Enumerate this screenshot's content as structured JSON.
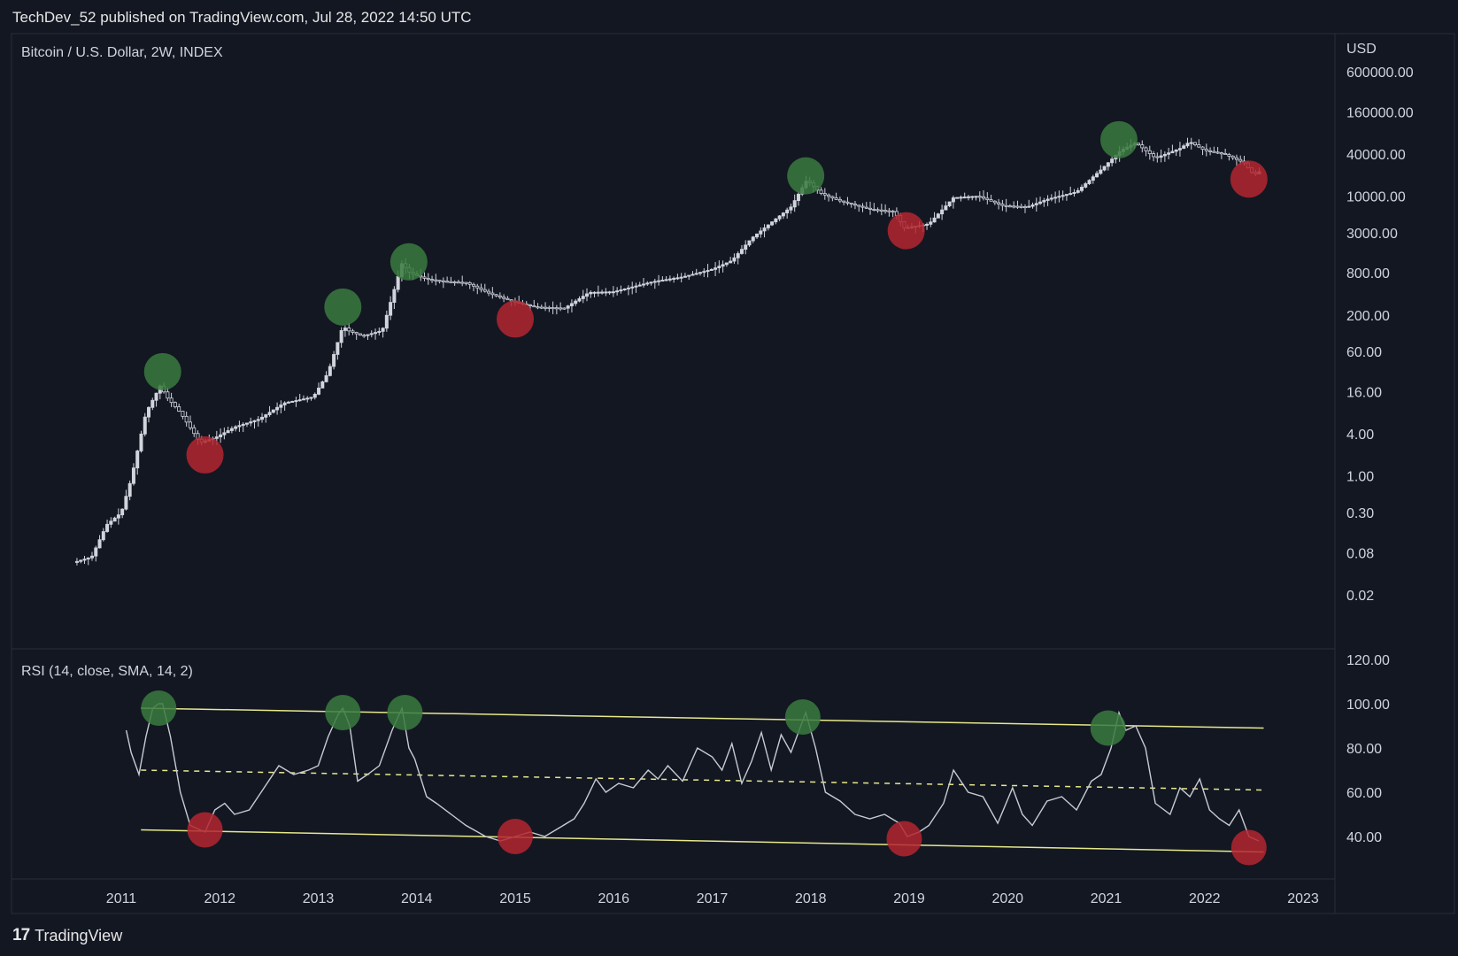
{
  "header": {
    "published": "TechDev_52 published on TradingView.com, Jul 28, 2022 14:50 UTC"
  },
  "footer": {
    "logo_glyph": "17",
    "brand": "TradingView"
  },
  "colors": {
    "background": "#131722",
    "candle": "#d1d4dc",
    "trendline": "#e6e88a",
    "green_marker": "#3a7a3e",
    "red_marker": "#b3262f",
    "rsi_line": "#c8cbd3"
  },
  "chart_data": [
    {
      "type": "line",
      "title": "Bitcoin / U.S. Dollar, 2W, INDEX",
      "currency": "USD",
      "y_scale": "log",
      "x_ticks": [
        "2011",
        "2012",
        "2013",
        "2014",
        "2015",
        "2016",
        "2017",
        "2018",
        "2019",
        "2020",
        "2021",
        "2022",
        "2023"
      ],
      "y_ticks": [
        "600000.00",
        "160000.00",
        "40000.00",
        "10000.00",
        "3000.00",
        "800.00",
        "200.00",
        "60.00",
        "16.00",
        "4.00",
        "1.00",
        "0.30",
        "0.08",
        "0.02"
      ],
      "series": [
        {
          "values_x": [
            2010.55,
            2010.7,
            2010.85,
            2011.0,
            2011.1,
            2011.25,
            2011.4,
            2011.45,
            2011.6,
            2011.8,
            2011.95,
            2012.15,
            2012.4,
            2012.65,
            2012.95,
            2013.1,
            2013.25,
            2013.3,
            2013.45,
            2013.65,
            2013.85,
            2013.93,
            2014.1,
            2014.3,
            2014.5,
            2014.75,
            2014.95,
            2015.2,
            2015.5,
            2015.75,
            2016.0,
            2016.4,
            2016.7,
            2017.0,
            2017.2,
            2017.4,
            2017.6,
            2017.8,
            2017.96,
            2018.1,
            2018.3,
            2018.6,
            2018.85,
            2018.95,
            2019.2,
            2019.45,
            2019.7,
            2019.95,
            2020.2,
            2020.4,
            2020.7,
            2020.95,
            2021.15,
            2021.3,
            2021.5,
            2021.75,
            2021.85,
            2022.0,
            2022.2,
            2022.4,
            2022.5,
            2022.57
          ],
          "values_y": [
            0.06,
            0.07,
            0.2,
            0.3,
            0.9,
            8,
            20,
            14,
            8,
            3,
            3.5,
            5,
            6.5,
            11,
            13.5,
            30,
            140,
            120,
            100,
            120,
            1100,
            800,
            650,
            600,
            580,
            400,
            320,
            260,
            250,
            420,
            430,
            600,
            700,
            900,
            1200,
            2500,
            4200,
            7000,
            17000,
            11000,
            8500,
            6500,
            6000,
            3500,
            4000,
            9500,
            10000,
            7300,
            7000,
            9000,
            11500,
            24000,
            45000,
            58000,
            35000,
            48000,
            60000,
            45000,
            40000,
            30000,
            20000,
            23000
          ],
          "name": ""
        }
      ],
      "markers": {
        "peaks": [
          [
            2011.42,
            31
          ],
          [
            2013.25,
            260
          ],
          [
            2013.92,
            1150
          ],
          [
            2017.95,
            19500
          ],
          [
            2021.13,
            64000
          ]
        ],
        "bottoms": [
          [
            2011.85,
            2
          ],
          [
            2015.0,
            175
          ],
          [
            2018.97,
            3200
          ],
          [
            2022.45,
            17500
          ]
        ]
      }
    },
    {
      "type": "line",
      "title": "RSI (14, close, SMA, 14, 2)",
      "ylim": [
        20,
        120
      ],
      "y_ticks": [
        "120.00",
        "100.00",
        "80.00",
        "60.00",
        "40.00"
      ],
      "series": [
        {
          "values_x": [
            2011.05,
            2011.1,
            2011.18,
            2011.25,
            2011.32,
            2011.38,
            2011.42,
            2011.5,
            2011.6,
            2011.7,
            2011.85,
            2011.95,
            2012.05,
            2012.15,
            2012.3,
            2012.45,
            2012.6,
            2012.75,
            2012.9,
            2013.0,
            2013.1,
            2013.2,
            2013.25,
            2013.32,
            2013.4,
            2013.5,
            2013.62,
            2013.75,
            2013.85,
            2013.92,
            2013.98,
            2014.1,
            2014.2,
            2014.35,
            2014.5,
            2014.7,
            2014.85,
            2015.0,
            2015.15,
            2015.3,
            2015.45,
            2015.6,
            2015.7,
            2015.82,
            2015.92,
            2016.05,
            2016.2,
            2016.35,
            2016.45,
            2016.55,
            2016.7,
            2016.85,
            2017.0,
            2017.1,
            2017.2,
            2017.3,
            2017.4,
            2017.5,
            2017.6,
            2017.7,
            2017.8,
            2017.95,
            2018.05,
            2018.15,
            2018.3,
            2018.45,
            2018.6,
            2018.75,
            2018.9,
            2018.98,
            2019.1,
            2019.2,
            2019.35,
            2019.45,
            2019.6,
            2019.75,
            2019.9,
            2020.05,
            2020.15,
            2020.25,
            2020.4,
            2020.55,
            2020.7,
            2020.85,
            2020.95,
            2021.05,
            2021.13,
            2021.2,
            2021.3,
            2021.4,
            2021.5,
            2021.65,
            2021.75,
            2021.85,
            2021.95,
            2022.05,
            2022.15,
            2022.25,
            2022.35,
            2022.45,
            2022.55
          ],
          "values_y": [
            88,
            78,
            68,
            85,
            98,
            100,
            100,
            85,
            60,
            45,
            42,
            52,
            55,
            50,
            52,
            62,
            72,
            68,
            70,
            72,
            85,
            95,
            98,
            90,
            65,
            68,
            72,
            88,
            98,
            80,
            75,
            58,
            55,
            50,
            45,
            40,
            38,
            40,
            42,
            40,
            44,
            48,
            55,
            66,
            60,
            64,
            62,
            70,
            66,
            72,
            65,
            80,
            76,
            70,
            82,
            64,
            74,
            87,
            70,
            86,
            78,
            96,
            80,
            60,
            56,
            50,
            48,
            50,
            46,
            40,
            42,
            45,
            55,
            70,
            60,
            58,
            46,
            62,
            50,
            45,
            56,
            58,
            52,
            65,
            68,
            80,
            96,
            88,
            90,
            80,
            55,
            50,
            62,
            58,
            66,
            52,
            48,
            45,
            52,
            40,
            38
          ],
          "name": ""
        }
      ],
      "trendlines": {
        "upper": [
          [
            2011.2,
            98
          ],
          [
            2022.6,
            89
          ]
        ],
        "middle": [
          [
            2011.2,
            70
          ],
          [
            2022.6,
            61
          ]
        ],
        "lower": [
          [
            2011.2,
            43
          ],
          [
            2022.6,
            33
          ]
        ]
      },
      "markers": {
        "peaks": [
          [
            2011.38,
            98
          ],
          [
            2013.25,
            96
          ],
          [
            2013.88,
            96
          ],
          [
            2017.92,
            94
          ],
          [
            2021.02,
            89
          ]
        ],
        "bottoms": [
          [
            2011.85,
            43
          ],
          [
            2015.0,
            40
          ],
          [
            2018.95,
            39
          ],
          [
            2022.45,
            35
          ]
        ]
      }
    }
  ]
}
